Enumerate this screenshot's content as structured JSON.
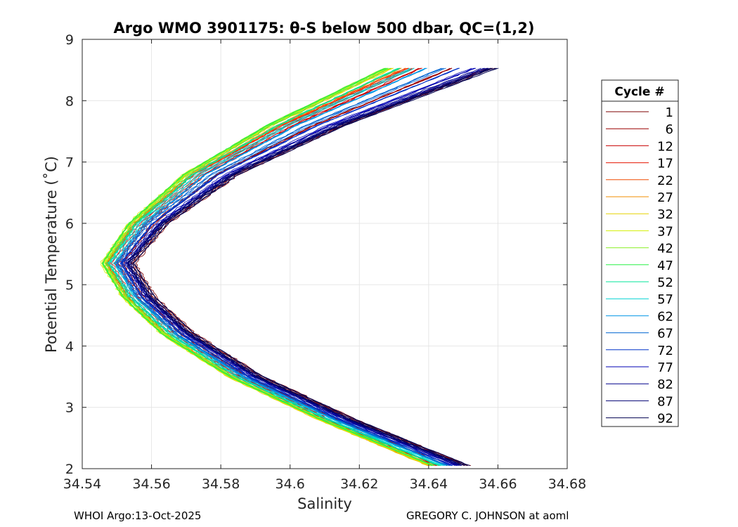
{
  "chart_data": {
    "type": "line",
    "title": "Argo WMO 3901175: θ-S below 500 dbar,  QC=(1,2)",
    "xlabel": "Salinity",
    "ylabel": "Potential Temperature (˚C)",
    "xlim": [
      34.54,
      34.68
    ],
    "ylim": [
      2,
      9
    ],
    "xticks": [
      "34.54",
      "34.56",
      "34.58",
      "34.6",
      "34.62",
      "34.64",
      "34.66",
      "34.68"
    ],
    "yticks": [
      "2",
      "3",
      "4",
      "5",
      "6",
      "7",
      "8",
      "9"
    ],
    "grid": true,
    "legend_title": "Cycle #",
    "legend_position": "right, outside",
    "series": [
      {
        "name": "1",
        "color": "#7f0000",
        "salinity_min": 34.5545,
        "salinity_top": 34.659,
        "salinity_bottom": 34.651
      },
      {
        "name": "6",
        "color": "#9c0000",
        "salinity_min": 34.552,
        "salinity_top": 34.648,
        "salinity_bottom": 34.646
      },
      {
        "name": "12",
        "color": "#c80000",
        "salinity_min": 34.5495,
        "salinity_top": 34.638,
        "salinity_bottom": 34.642
      },
      {
        "name": "17",
        "color": "#e61400",
        "salinity_min": 34.548,
        "salinity_top": 34.636,
        "salinity_bottom": 34.641
      },
      {
        "name": "22",
        "color": "#f04a00",
        "salinity_min": 34.547,
        "salinity_top": 34.634,
        "salinity_bottom": 34.64
      },
      {
        "name": "27",
        "color": "#f08c00",
        "salinity_min": 34.5465,
        "salinity_top": 34.632,
        "salinity_bottom": 34.64
      },
      {
        "name": "32",
        "color": "#e6d200",
        "salinity_min": 34.546,
        "salinity_top": 34.63,
        "salinity_bottom": 34.64
      },
      {
        "name": "37",
        "color": "#d2f000",
        "salinity_min": 34.5458,
        "salinity_top": 34.629,
        "salinity_bottom": 34.641
      },
      {
        "name": "42",
        "color": "#8cf028",
        "salinity_min": 34.546,
        "salinity_top": 34.628,
        "salinity_bottom": 34.641
      },
      {
        "name": "47",
        "color": "#28f046",
        "salinity_min": 34.5465,
        "salinity_top": 34.629,
        "salinity_bottom": 34.642
      },
      {
        "name": "52",
        "color": "#00e69b",
        "salinity_min": 34.5475,
        "salinity_top": 34.632,
        "salinity_bottom": 34.643
      },
      {
        "name": "57",
        "color": "#00d2d2",
        "salinity_min": 34.5485,
        "salinity_top": 34.636,
        "salinity_bottom": 34.644
      },
      {
        "name": "62",
        "color": "#0096e6",
        "salinity_min": 34.5495,
        "salinity_top": 34.64,
        "salinity_bottom": 34.645
      },
      {
        "name": "67",
        "color": "#0064d2",
        "salinity_min": 34.5505,
        "salinity_top": 34.645,
        "salinity_bottom": 34.646
      },
      {
        "name": "72",
        "color": "#0032c8",
        "salinity_min": 34.5515,
        "salinity_top": 34.65,
        "salinity_bottom": 34.647
      },
      {
        "name": "77",
        "color": "#0000b4",
        "salinity_min": 34.5525,
        "salinity_top": 34.654,
        "salinity_bottom": 34.648
      },
      {
        "name": "82",
        "color": "#00008c",
        "salinity_min": 34.553,
        "salinity_top": 34.657,
        "salinity_bottom": 34.649
      },
      {
        "name": "87",
        "color": "#000073",
        "salinity_min": 34.5535,
        "salinity_top": 34.659,
        "salinity_bottom": 34.65
      },
      {
        "name": "92",
        "color": "#000050",
        "salinity_min": 34.554,
        "salinity_top": 34.66,
        "salinity_bottom": 34.651
      }
    ]
  },
  "footer": {
    "left": "WHOI Argo:13-Oct-2025",
    "right": "GREGORY C. JOHNSON at aoml"
  }
}
